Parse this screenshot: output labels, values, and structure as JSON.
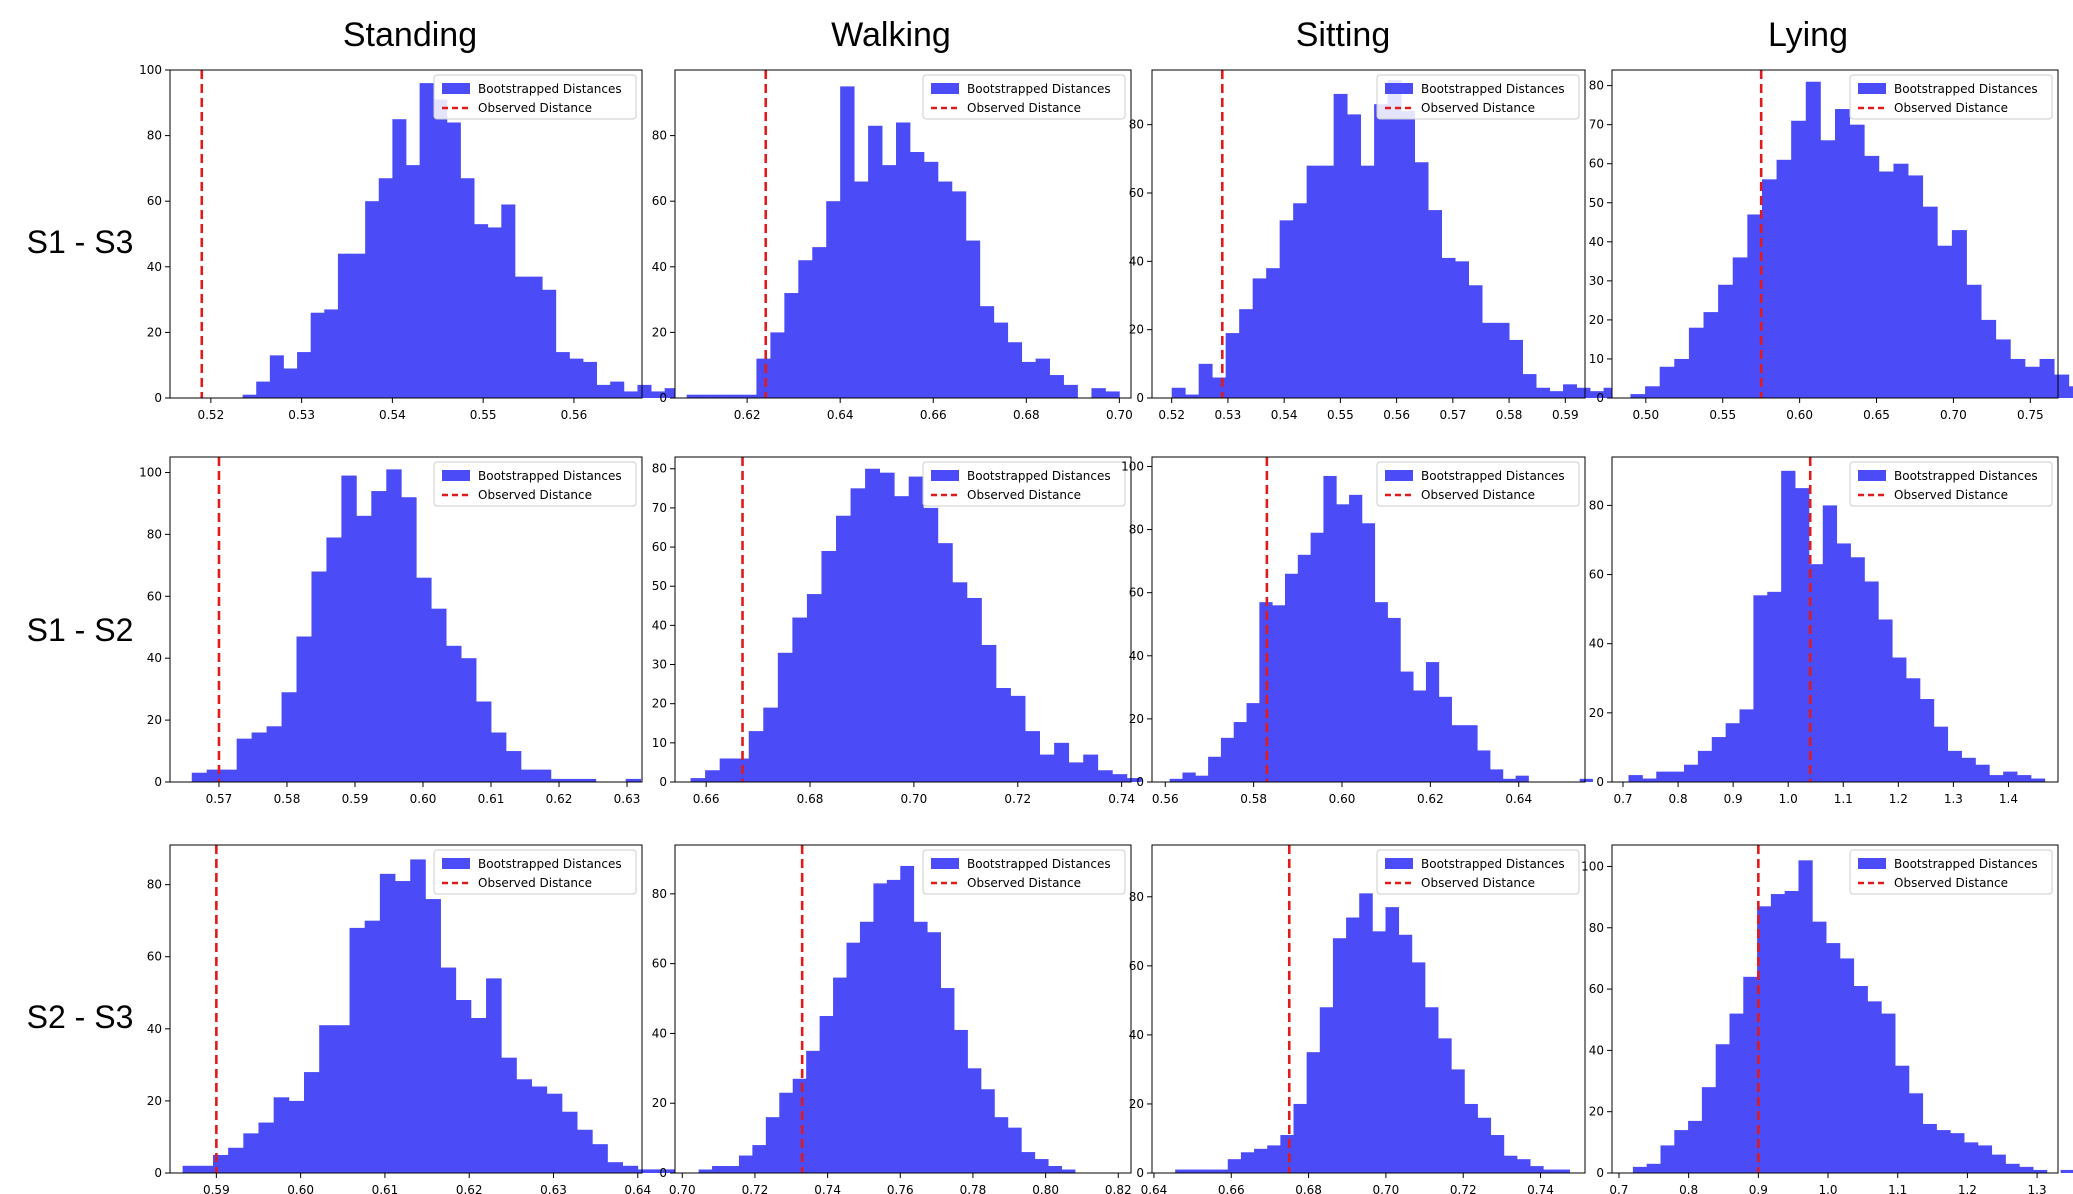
{
  "column_titles": [
    "Standing",
    "Walking",
    "Sitting",
    "Lying"
  ],
  "row_labels": [
    "S1 - S3",
    "S1 - S2",
    "S2 - S3"
  ],
  "legend": {
    "bootstrapped": "Bootstrapped Distances",
    "observed": "Observed Distance",
    "placement": "top-right"
  },
  "colors": {
    "bars": "#4b4bf7",
    "observed_line": "#e11b1b",
    "axes": "#000000"
  },
  "chart_data": [
    {
      "type": "bar",
      "row": "S1 - S3",
      "column": "Standing",
      "observed": 0.519,
      "bin_start": 0.5235,
      "bin_width": 0.0015,
      "counts": [
        1,
        5,
        13,
        9,
        14,
        26,
        27,
        44,
        44,
        60,
        67,
        85,
        71,
        96,
        91,
        84,
        67,
        53,
        52,
        59,
        37,
        37,
        33,
        14,
        12,
        11,
        4,
        5,
        2,
        4,
        2,
        3
      ],
      "xlim": [
        0.5155,
        0.5675
      ],
      "ylim": [
        0,
        100
      ],
      "xticks": [
        0.52,
        0.53,
        0.54,
        0.55,
        0.56
      ],
      "xtick_labels": [
        "0.52",
        "0.53",
        "0.54",
        "0.55",
        "0.56"
      ],
      "yticks": [
        0,
        20,
        40,
        60,
        80,
        100
      ],
      "ytick_labels": [
        "0",
        "20",
        "40",
        "60",
        "80",
        "100"
      ],
      "grid": false
    },
    {
      "type": "bar",
      "row": "S1 - S3",
      "column": "Walking",
      "observed": 0.624,
      "bin_start": 0.607,
      "bin_width": 0.003,
      "counts": [
        1,
        1,
        1,
        1,
        1,
        12,
        20,
        32,
        42,
        46,
        60,
        95,
        66,
        83,
        71,
        84,
        75,
        72,
        66,
        63,
        48,
        28,
        23,
        17,
        11,
        12,
        7,
        4,
        0,
        3,
        2
      ],
      "xlim": [
        0.6045,
        0.7025
      ],
      "ylim": [
        0,
        100
      ],
      "xticks": [
        0.62,
        0.64,
        0.66,
        0.68,
        0.7
      ],
      "xtick_labels": [
        "0.62",
        "0.64",
        "0.66",
        "0.68",
        "0.70"
      ],
      "yticks": [
        0,
        20,
        40,
        60,
        80
      ],
      "ytick_labels": [
        "0",
        "20",
        "40",
        "60",
        "80"
      ],
      "grid": false
    },
    {
      "type": "bar",
      "row": "S1 - S3",
      "column": "Sitting",
      "observed": 0.529,
      "bin_start": 0.52,
      "bin_width": 0.0024,
      "counts": [
        3,
        1,
        10,
        6,
        19,
        26,
        35,
        38,
        52,
        57,
        68,
        68,
        89,
        83,
        68,
        86,
        93,
        84,
        69,
        55,
        41,
        40,
        33,
        22,
        22,
        17,
        7,
        3,
        2,
        4,
        3,
        2,
        3
      ],
      "xlim": [
        0.5165,
        0.5935
      ],
      "ylim": [
        0,
        96
      ],
      "xticks": [
        0.52,
        0.53,
        0.54,
        0.55,
        0.56,
        0.57,
        0.58,
        0.59
      ],
      "xtick_labels": [
        "0.52",
        "0.53",
        "0.54",
        "0.55",
        "0.56",
        "0.57",
        "0.58",
        "0.59"
      ],
      "yticks": [
        0,
        20,
        40,
        60,
        80
      ],
      "ytick_labels": [
        "0",
        "20",
        "40",
        "60",
        "80"
      ],
      "grid": false
    },
    {
      "type": "bar",
      "row": "S1 - S3",
      "column": "Lying",
      "observed": 0.575,
      "bin_start": 0.49,
      "bin_width": 0.0095,
      "counts": [
        1,
        3,
        8,
        10,
        18,
        22,
        29,
        36,
        47,
        56,
        61,
        71,
        81,
        66,
        74,
        70,
        62,
        58,
        60,
        57,
        49,
        39,
        43,
        29,
        20,
        15,
        10,
        8,
        10,
        6,
        3,
        2,
        2,
        1
      ],
      "xlim": [
        0.478,
        0.768
      ],
      "ylim": [
        0,
        84
      ],
      "xticks": [
        0.5,
        0.55,
        0.6,
        0.65,
        0.7,
        0.75
      ],
      "xtick_labels": [
        "0.50",
        "0.55",
        "0.60",
        "0.65",
        "0.70",
        "0.75"
      ],
      "yticks": [
        0,
        10,
        20,
        30,
        40,
        50,
        60,
        70,
        80
      ],
      "ytick_labels": [
        "0",
        "10",
        "20",
        "30",
        "40",
        "50",
        "60",
        "70",
        "80"
      ],
      "grid": false
    },
    {
      "type": "bar",
      "row": "S1 - S2",
      "column": "Standing",
      "observed": 0.57,
      "bin_start": 0.566,
      "bin_width": 0.0022,
      "counts": [
        3,
        4,
        4,
        14,
        16,
        18,
        29,
        47,
        68,
        79,
        99,
        86,
        94,
        101,
        92,
        66,
        56,
        44,
        40,
        26,
        16,
        10,
        4,
        4,
        1,
        1,
        1,
        0,
        0,
        1
      ],
      "xlim": [
        0.5628,
        0.6322
      ],
      "ylim": [
        0,
        105
      ],
      "xticks": [
        0.57,
        0.58,
        0.59,
        0.6,
        0.61,
        0.62,
        0.63
      ],
      "xtick_labels": [
        "0.57",
        "0.58",
        "0.59",
        "0.60",
        "0.61",
        "0.62",
        "0.63"
      ],
      "yticks": [
        0,
        20,
        40,
        60,
        80,
        100
      ],
      "ytick_labels": [
        "0",
        "20",
        "40",
        "60",
        "80",
        "100"
      ],
      "grid": false
    },
    {
      "type": "bar",
      "row": "S1 - S2",
      "column": "Walking",
      "observed": 0.667,
      "bin_start": 0.657,
      "bin_width": 0.0028,
      "counts": [
        1,
        3,
        6,
        6,
        13,
        19,
        33,
        42,
        48,
        59,
        68,
        75,
        80,
        79,
        73,
        78,
        70,
        61,
        51,
        47,
        35,
        24,
        22,
        13,
        7,
        10,
        5,
        7,
        3,
        2,
        1
      ],
      "xlim": [
        0.654,
        0.7418
      ],
      "ylim": [
        0,
        83
      ],
      "xticks": [
        0.66,
        0.68,
        0.7,
        0.72,
        0.74
      ],
      "xtick_labels": [
        "0.66",
        "0.68",
        "0.70",
        "0.72",
        "0.74"
      ],
      "yticks": [
        0,
        10,
        20,
        30,
        40,
        50,
        60,
        70,
        80
      ],
      "ytick_labels": [
        "0",
        "10",
        "20",
        "30",
        "40",
        "50",
        "60",
        "70",
        "80"
      ],
      "grid": false
    },
    {
      "type": "bar",
      "row": "S1 - S2",
      "column": "Sitting",
      "observed": 0.583,
      "bin_start": 0.561,
      "bin_width": 0.0029,
      "counts": [
        1,
        3,
        2,
        8,
        14,
        19,
        25,
        57,
        56,
        66,
        72,
        79,
        97,
        88,
        91,
        82,
        57,
        52,
        35,
        29,
        38,
        27,
        18,
        18,
        10,
        4,
        1,
        2,
        0,
        0,
        0,
        0,
        1
      ],
      "xlim": [
        0.557,
        0.655
      ],
      "ylim": [
        0,
        103
      ],
      "xticks": [
        0.56,
        0.58,
        0.6,
        0.62,
        0.64
      ],
      "xtick_labels": [
        "0.56",
        "0.58",
        "0.60",
        "0.62",
        "0.64"
      ],
      "yticks": [
        0,
        20,
        40,
        60,
        80,
        100
      ],
      "ytick_labels": [
        "0",
        "20",
        "40",
        "60",
        "80",
        "100"
      ],
      "grid": false
    },
    {
      "type": "bar",
      "row": "S1 - S2",
      "column": "Lying",
      "observed": 1.04,
      "bin_start": 0.71,
      "bin_width": 0.0252,
      "counts": [
        2,
        1,
        3,
        3,
        5,
        9,
        13,
        17,
        21,
        54,
        55,
        90,
        85,
        63,
        80,
        69,
        65,
        58,
        47,
        36,
        30,
        24,
        16,
        9,
        7,
        5,
        2,
        3,
        2,
        1
      ],
      "xlim": [
        0.68,
        1.49
      ],
      "ylim": [
        0,
        94
      ],
      "xticks": [
        0.7,
        0.8,
        0.9,
        1.0,
        1.1,
        1.2,
        1.3,
        1.4
      ],
      "xtick_labels": [
        "0.7",
        "0.8",
        "0.9",
        "1.0",
        "1.1",
        "1.2",
        "1.3",
        "1.4"
      ],
      "yticks": [
        0,
        20,
        40,
        60,
        80
      ],
      "ytick_labels": [
        "0",
        "20",
        "40",
        "60",
        "80"
      ],
      "grid": false
    },
    {
      "type": "bar",
      "row": "S2 - S3",
      "column": "Standing",
      "observed": 0.59,
      "bin_start": 0.586,
      "bin_width": 0.0018,
      "counts": [
        2,
        2,
        5,
        7,
        11,
        14,
        21,
        20,
        28,
        41,
        41,
        68,
        70,
        83,
        81,
        87,
        76,
        57,
        48,
        43,
        54,
        32,
        26,
        24,
        22,
        17,
        12,
        8,
        3,
        2,
        1,
        1,
        1
      ],
      "xlim": [
        0.5845,
        0.6405
      ],
      "ylim": [
        0,
        91
      ],
      "xticks": [
        0.59,
        0.6,
        0.61,
        0.62,
        0.63,
        0.64
      ],
      "xtick_labels": [
        "0.59",
        "0.60",
        "0.61",
        "0.62",
        "0.63",
        "0.64"
      ],
      "yticks": [
        0,
        20,
        40,
        60,
        80
      ],
      "ytick_labels": [
        "0",
        "20",
        "40",
        "60",
        "80"
      ],
      "grid": false
    },
    {
      "type": "bar",
      "row": "S2 - S3",
      "column": "Walking",
      "observed": 0.733,
      "bin_start": 0.7045,
      "bin_width": 0.0037,
      "counts": [
        1,
        2,
        2,
        5,
        8,
        16,
        23,
        27,
        35,
        45,
        56,
        66,
        72,
        83,
        84,
        88,
        72,
        69,
        53,
        41,
        30,
        24,
        16,
        13,
        6,
        4,
        2,
        1,
        0
      ],
      "xlim": [
        0.698,
        0.8235
      ],
      "ylim": [
        0,
        94
      ],
      "xticks": [
        0.7,
        0.72,
        0.74,
        0.76,
        0.78,
        0.8,
        0.82
      ],
      "xtick_labels": [
        "0.70",
        "0.72",
        "0.74",
        "0.76",
        "0.78",
        "0.80",
        "0.82"
      ],
      "yticks": [
        0,
        20,
        40,
        60,
        80
      ],
      "ytick_labels": [
        "0",
        "20",
        "40",
        "60",
        "80"
      ],
      "grid": false
    },
    {
      "type": "bar",
      "row": "S2 - S3",
      "column": "Sitting",
      "observed": 0.675,
      "bin_start": 0.6455,
      "bin_width": 0.0034,
      "counts": [
        1,
        1,
        1,
        1,
        4,
        6,
        7,
        8,
        11,
        20,
        35,
        48,
        68,
        74,
        81,
        70,
        77,
        69,
        61,
        48,
        39,
        30,
        20,
        16,
        11,
        5,
        4,
        2,
        1,
        1
      ],
      "xlim": [
        0.6395,
        0.7515
      ],
      "ylim": [
        0,
        95
      ],
      "xticks": [
        0.64,
        0.66,
        0.68,
        0.7,
        0.72,
        0.74
      ],
      "xtick_labels": [
        "0.64",
        "0.66",
        "0.68",
        "0.70",
        "0.72",
        "0.74"
      ],
      "yticks": [
        0,
        20,
        40,
        60,
        80
      ],
      "ytick_labels": [
        "0",
        "20",
        "40",
        "60",
        "80"
      ],
      "grid": false
    },
    {
      "type": "bar",
      "row": "S2 - S3",
      "column": "Lying",
      "observed": 0.9,
      "bin_start": 0.72,
      "bin_width": 0.0198,
      "counts": [
        2,
        3,
        9,
        14,
        17,
        28,
        42,
        52,
        64,
        87,
        91,
        92,
        102,
        82,
        75,
        70,
        61,
        56,
        52,
        35,
        26,
        16,
        14,
        13,
        10,
        9,
        6,
        3,
        2,
        1,
        0,
        1
      ],
      "xlim": [
        0.69,
        1.33
      ],
      "ylim": [
        0,
        107
      ],
      "xticks": [
        0.7,
        0.8,
        0.9,
        1.0,
        1.1,
        1.2,
        1.3
      ],
      "xtick_labels": [
        "0.7",
        "0.8",
        "0.9",
        "1.0",
        "1.1",
        "1.2",
        "1.3"
      ],
      "yticks": [
        0,
        20,
        40,
        60,
        80,
        100
      ],
      "ytick_labels": [
        "0",
        "20",
        "40",
        "60",
        "80",
        "100"
      ],
      "grid": false
    }
  ]
}
